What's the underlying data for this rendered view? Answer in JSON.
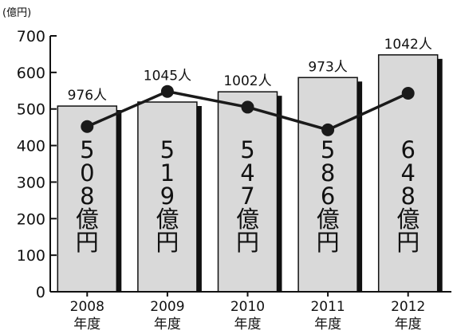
{
  "chart_data": {
    "type": "bar",
    "unit": "(億円)",
    "categories": [
      "2008",
      "2009",
      "2010",
      "2011",
      "2012"
    ],
    "category_suffix": "年度",
    "ylim": [
      0,
      700
    ],
    "yticks": [
      0,
      100,
      200,
      300,
      400,
      500,
      600,
      700
    ],
    "grid": false,
    "series": [
      {
        "kind": "bar",
        "values": [
          508,
          519,
          547,
          586,
          648
        ],
        "labels": [
          "508億円",
          "519億円",
          "547億円",
          "586億円",
          "648億円"
        ],
        "color": "#d9d9d9"
      },
      {
        "kind": "line",
        "values": [
          976,
          1045,
          1002,
          973,
          1042
        ],
        "labels": [
          "976人",
          "1045人",
          "1002人",
          "973人",
          "1042人"
        ],
        "color": "#1a1a1a"
      }
    ],
    "line_plot_values": [
      452,
      548,
      505,
      443,
      543
    ]
  }
}
